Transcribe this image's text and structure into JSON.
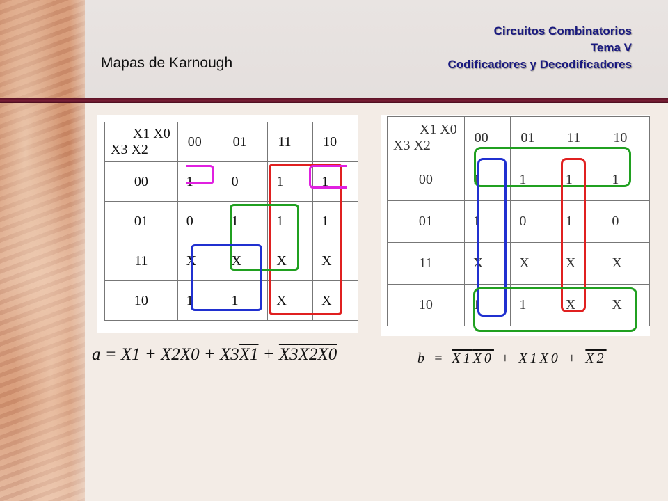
{
  "header": {
    "page_title": "Mapas de Karnough",
    "course": "Circuitos Combinatorios",
    "topic": "Tema V",
    "subtopic": "Codificadores y Decodificadores"
  },
  "kmap_a": {
    "corner_top": "X1 X0",
    "corner_bottom": "X3 X2",
    "columns": [
      "00",
      "01",
      "11",
      "10"
    ],
    "rows": [
      {
        "label": "00",
        "cells": [
          "1",
          "0",
          "1",
          "1"
        ]
      },
      {
        "label": "01",
        "cells": [
          "0",
          "1",
          "1",
          "1"
        ]
      },
      {
        "label": "11",
        "cells": [
          "X",
          "X",
          "X",
          "X"
        ]
      },
      {
        "label": "10",
        "cells": [
          "1",
          "1",
          "X",
          "X"
        ]
      }
    ],
    "group_colors": [
      "#e020e0",
      "#e02020",
      "#20a020",
      "#2030d0"
    ]
  },
  "kmap_b": {
    "corner_top": "X1 X0",
    "corner_bottom": "X3 X2",
    "columns": [
      "00",
      "01",
      "11",
      "10"
    ],
    "rows": [
      {
        "label": "00",
        "cells": [
          "1",
          "1",
          "1",
          "1"
        ]
      },
      {
        "label": "01",
        "cells": [
          "1",
          "0",
          "1",
          "0"
        ]
      },
      {
        "label": "11",
        "cells": [
          "X",
          "X",
          "X",
          "X"
        ]
      },
      {
        "label": "10",
        "cells": [
          "1",
          "1",
          "X",
          "X"
        ]
      }
    ],
    "group_colors": [
      "#20a020",
      "#2030d0",
      "#e02020",
      "#20a020"
    ]
  },
  "equation_a": {
    "lhs": "a",
    "eq": " = ",
    "t1": "X1",
    "p1": " + ",
    "t2": "X2X0",
    "p2": " + ",
    "t3a": "X3",
    "t3b": "X1",
    "p3": " + ",
    "t4a": "X3",
    "t4b": "X2",
    "t4c": "X0"
  },
  "equation_b": {
    "lhs": "b",
    "eq": " = ",
    "t1a": "X1",
    "t1b": "X0",
    "p1": " + ",
    "t2": "X1X0",
    "p2": " + ",
    "t3": "X2"
  }
}
